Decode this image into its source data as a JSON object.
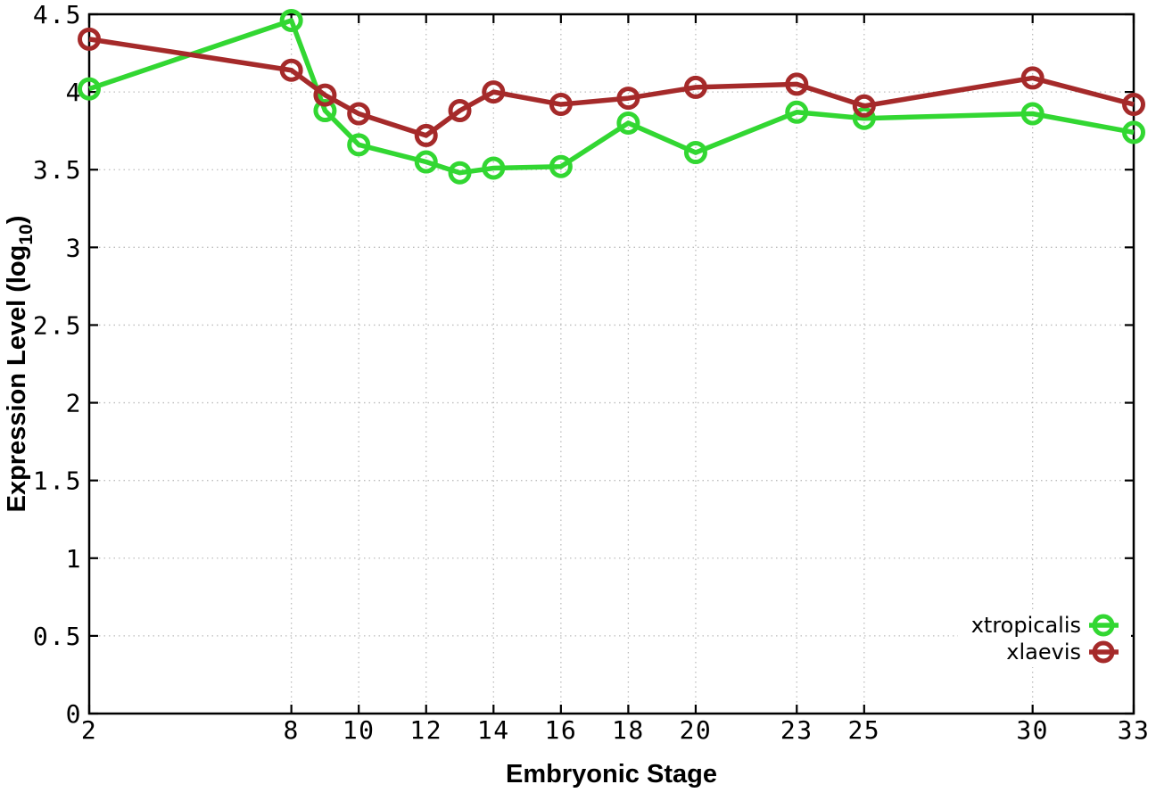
{
  "chart_data": {
    "type": "line",
    "title": "",
    "xlabel": "Embryonic Stage",
    "ylabel": "Expression Level (log10)",
    "ylabel_parts": {
      "pre": "Expression Level (log",
      "sub": "10",
      "post": ")"
    },
    "xlim": [
      2,
      33
    ],
    "ylim": [
      0,
      4.5
    ],
    "x_ticks": [
      2,
      8,
      10,
      12,
      14,
      16,
      18,
      20,
      23,
      25,
      30,
      33
    ],
    "x_tick_labels": [
      "2",
      "8",
      "10",
      "12",
      "14",
      "16",
      "18",
      "20",
      "23",
      "25",
      "30",
      "33"
    ],
    "y_ticks": [
      0,
      0.5,
      1,
      1.5,
      2,
      2.5,
      3,
      3.5,
      4,
      4.5
    ],
    "y_tick_labels": [
      "0",
      "0.5",
      "1",
      "1.5",
      "2",
      "2.5",
      "3",
      "3.5",
      "4",
      "4.5"
    ],
    "grid": true,
    "grid_color": "#bdbdbd",
    "axis_color": "#000000",
    "background": "#ffffff",
    "legend_position": "bottom-right",
    "marker": "open-circle",
    "x": [
      2,
      8,
      9,
      10,
      12,
      13,
      14,
      16,
      18,
      20,
      23,
      25,
      30,
      33
    ],
    "series": [
      {
        "name": "xtropicalis",
        "color": "#32d732",
        "values": [
          4.02,
          4.46,
          3.88,
          3.66,
          3.55,
          3.48,
          3.51,
          3.52,
          3.8,
          3.61,
          3.87,
          3.83,
          3.86,
          3.74
        ]
      },
      {
        "name": "xlaevis",
        "color": "#a52a2a",
        "values": [
          4.34,
          4.14,
          3.98,
          3.86,
          3.72,
          3.88,
          4.0,
          3.92,
          3.96,
          4.03,
          4.05,
          3.91,
          4.09,
          3.92
        ]
      }
    ]
  }
}
